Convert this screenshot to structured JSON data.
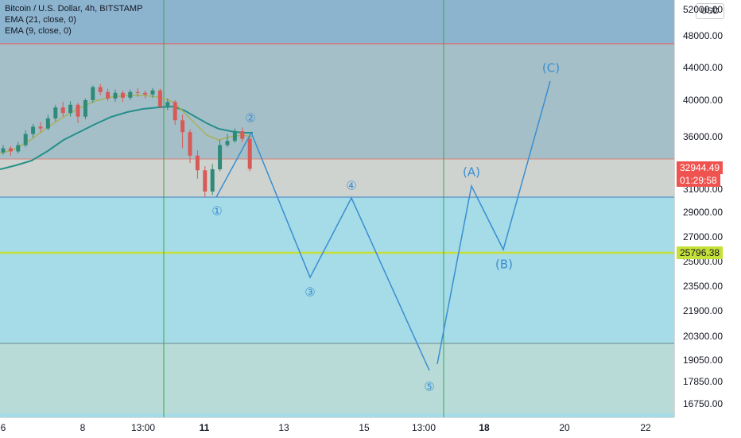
{
  "legend": {
    "symbol": "Bitcoin / U.S. Dollar, 4h, BITSTAMP",
    "ema21": "EMA (21, close, 0)",
    "ema9": "EMA (9, close, 0)"
  },
  "currency_button": "USD",
  "price_labels": {
    "current_price": "32944.49",
    "countdown": "01:29:58",
    "level": "25796.38"
  },
  "colors": {
    "accent_red": "#ef5350",
    "level_green": "#c6e03a",
    "wave_blue": "#3a8ed0",
    "ema_teal": "#26908a",
    "ema_olive": "#a8b05a"
  },
  "chart_data": {
    "type": "line",
    "symbol": "Bitcoin / U.S. Dollar, 4h, BITSTAMP",
    "price_axis_ticks": [
      "52000.00",
      "48000.00",
      "44000.00",
      "40000.00",
      "36000.00",
      "31000.00",
      "29000.00",
      "27000.00",
      "25000.00",
      "23500.00",
      "21900.00",
      "20300.00",
      "19050.00",
      "17850.00",
      "16750.00"
    ],
    "time_axis_ticks": [
      {
        "label": "6",
        "bold": false
      },
      {
        "label": "8",
        "bold": false
      },
      {
        "label": "13:00",
        "bold": false
      },
      {
        "label": "11",
        "bold": true
      },
      {
        "label": "13",
        "bold": false
      },
      {
        "label": "15",
        "bold": false
      },
      {
        "label": "13:00",
        "bold": false
      },
      {
        "label": "18",
        "bold": true
      },
      {
        "label": "20",
        "bold": false
      },
      {
        "label": "22",
        "bold": false
      }
    ],
    "candles_approx": [
      {
        "o": 34500,
        "c": 34900,
        "h": 35200,
        "l": 34300
      },
      {
        "o": 34900,
        "c": 34600,
        "h": 35100,
        "l": 34200
      },
      {
        "o": 34600,
        "c": 35200,
        "h": 35500,
        "l": 34400
      },
      {
        "o": 35200,
        "c": 36300,
        "h": 36700,
        "l": 35000
      },
      {
        "o": 36300,
        "c": 37100,
        "h": 37400,
        "l": 35900
      },
      {
        "o": 37100,
        "c": 36900,
        "h": 37600,
        "l": 36500
      },
      {
        "o": 36900,
        "c": 38000,
        "h": 38400,
        "l": 36700
      },
      {
        "o": 38000,
        "c": 39200,
        "h": 39500,
        "l": 37700
      },
      {
        "o": 39200,
        "c": 38600,
        "h": 39800,
        "l": 38200
      },
      {
        "o": 38600,
        "c": 39500,
        "h": 39900,
        "l": 38200
      },
      {
        "o": 39500,
        "c": 38200,
        "h": 39700,
        "l": 37500
      },
      {
        "o": 38200,
        "c": 40000,
        "h": 40200,
        "l": 37900
      },
      {
        "o": 40000,
        "c": 41600,
        "h": 41800,
        "l": 39700
      },
      {
        "o": 41600,
        "c": 41000,
        "h": 42000,
        "l": 40600
      },
      {
        "o": 41000,
        "c": 40200,
        "h": 41400,
        "l": 39900
      },
      {
        "o": 40200,
        "c": 40900,
        "h": 41300,
        "l": 39800
      },
      {
        "o": 40900,
        "c": 40300,
        "h": 41200,
        "l": 39800
      },
      {
        "o": 40300,
        "c": 41000,
        "h": 41300,
        "l": 40000
      },
      {
        "o": 41000,
        "c": 40900,
        "h": 41500,
        "l": 40400
      },
      {
        "o": 40900,
        "c": 40700,
        "h": 41200,
        "l": 40200
      },
      {
        "o": 40700,
        "c": 41200,
        "h": 41500,
        "l": 40300
      },
      {
        "o": 41200,
        "c": 39300,
        "h": 41400,
        "l": 39100
      },
      {
        "o": 39300,
        "c": 39800,
        "h": 40200,
        "l": 38900
      },
      {
        "o": 39800,
        "c": 37800,
        "h": 40000,
        "l": 37300
      },
      {
        "o": 37800,
        "c": 36500,
        "h": 38400,
        "l": 34900
      },
      {
        "o": 36500,
        "c": 34200,
        "h": 36800,
        "l": 33500
      },
      {
        "o": 34200,
        "c": 32800,
        "h": 34700,
        "l": 32000
      },
      {
        "o": 32800,
        "c": 30800,
        "h": 33200,
        "l": 30300
      },
      {
        "o": 30800,
        "c": 32900,
        "h": 33400,
        "l": 30500
      },
      {
        "o": 32900,
        "c": 35200,
        "h": 35700,
        "l": 32700
      },
      {
        "o": 35200,
        "c": 35600,
        "h": 36300,
        "l": 35000
      },
      {
        "o": 35600,
        "c": 36600,
        "h": 36900,
        "l": 35400
      },
      {
        "o": 36600,
        "c": 35800,
        "h": 37000,
        "l": 35500
      },
      {
        "o": 35800,
        "c": 32944,
        "h": 36300,
        "l": 32700
      }
    ],
    "horizontal_levels": [
      {
        "price": 47000,
        "color": "red"
      },
      {
        "price": 33400,
        "color": "red"
      },
      {
        "price": 30200,
        "color": "blue"
      },
      {
        "price": 25796,
        "color": "green"
      },
      {
        "price": 19900,
        "color": "gray"
      }
    ],
    "wave_projection": [
      {
        "label": "①",
        "price": 30200
      },
      {
        "label": "②",
        "price": 36400
      },
      {
        "label": "③",
        "price": 24500
      },
      {
        "label": "④",
        "price": 30200
      },
      {
        "label": "⑤",
        "price": 18500
      },
      {
        "label": "(A)",
        "price": 31200
      },
      {
        "label": "(B)",
        "price": 26000
      },
      {
        "label": "(C)",
        "price": 42000
      }
    ]
  }
}
